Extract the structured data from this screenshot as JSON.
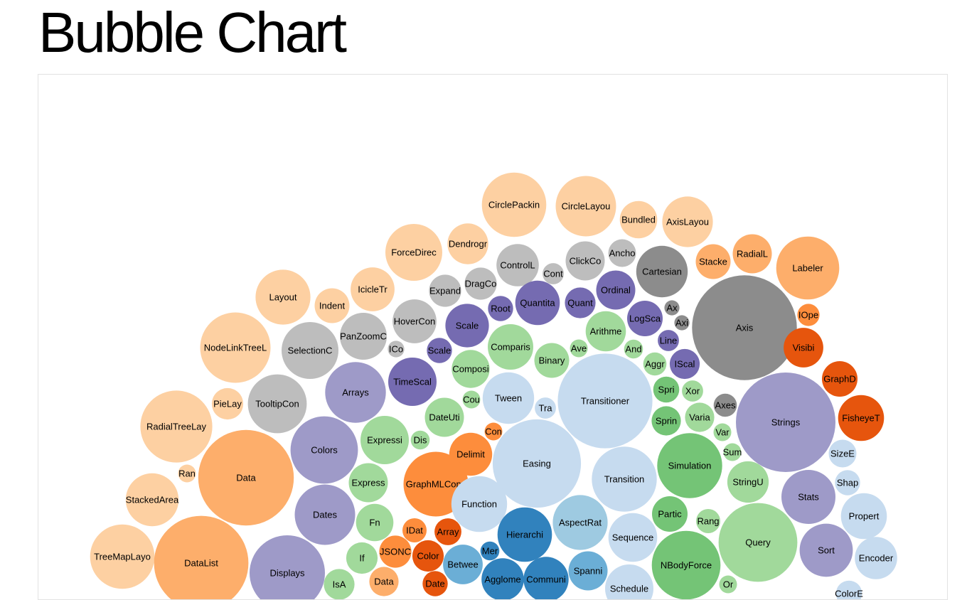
{
  "page": {
    "title": "Bubble Chart"
  },
  "colors": {
    "gray": [
      "#8c8c8c",
      "#adadad",
      "#bdbdbd"
    ],
    "orange": [
      "#e6550d",
      "#fd8d3c",
      "#fdae6b",
      "#fdd0a2"
    ],
    "purple": [
      "#756bb1",
      "#9e9ac8"
    ],
    "green": [
      "#74c476",
      "#a1d99b"
    ],
    "blue": [
      "#3182bd",
      "#6baed6",
      "#9ecae1",
      "#c6dbef"
    ]
  },
  "chart_data": {
    "type": "bubble",
    "title": "Bubble Chart",
    "bubbles": [
      {
        "label": "CirclePackin",
        "value": 9.2,
        "color": "#fdd0a2"
      },
      {
        "label": "CircleLayou",
        "value": 8.1,
        "color": "#fdd0a2"
      },
      {
        "label": "Bundled",
        "value": 3.1,
        "color": "#fdd0a2"
      },
      {
        "label": "AxisLayou",
        "value": 5.7,
        "color": "#fdd0a2"
      },
      {
        "label": "ForceDirec",
        "value": 7.2,
        "color": "#fdd0a2"
      },
      {
        "label": "Dendrogr",
        "value": 3.7,
        "color": "#fdd0a2"
      },
      {
        "label": "ControlL",
        "value": 4.0,
        "color": "#bdbdbd"
      },
      {
        "label": "ClickCo",
        "value": 3.4,
        "color": "#bdbdbd"
      },
      {
        "label": "Ancho",
        "value": 1.7,
        "color": "#bdbdbd"
      },
      {
        "label": "Cartesian",
        "value": 5.9,
        "color": "#8c8c8c"
      },
      {
        "label": "Stacke",
        "value": 2.7,
        "color": "#fdae6b"
      },
      {
        "label": "RadialL",
        "value": 3.4,
        "color": "#fdae6b"
      },
      {
        "label": "Labeler",
        "value": 8.8,
        "color": "#fdae6b"
      },
      {
        "label": "Layout",
        "value": 6.7,
        "color": "#fdd0a2"
      },
      {
        "label": "Indent",
        "value": 2.7,
        "color": "#fdd0a2"
      },
      {
        "label": "IcicleTr",
        "value": 4.3,
        "color": "#fdd0a2"
      },
      {
        "label": "Expand",
        "value": 2.3,
        "color": "#bdbdbd"
      },
      {
        "label": "DragCo",
        "value": 2.3,
        "color": "#bdbdbd"
      },
      {
        "label": "Cont",
        "value": 1.0,
        "color": "#bdbdbd"
      },
      {
        "label": "Ordinal",
        "value": 3.4,
        "color": "#756bb1"
      },
      {
        "label": "Quant",
        "value": 2.1,
        "color": "#756bb1"
      },
      {
        "label": "Quantita",
        "value": 4.4,
        "color": "#756bb1"
      },
      {
        "label": "Root",
        "value": 1.4,
        "color": "#756bb1"
      },
      {
        "label": "HoverCon",
        "value": 4.3,
        "color": "#bdbdbd"
      },
      {
        "label": "NodeLinkTreeL",
        "value": 11.0,
        "color": "#fdd0a2"
      },
      {
        "label": "SelectionC",
        "value": 7.2,
        "color": "#bdbdbd"
      },
      {
        "label": "PanZoomC",
        "value": 4.9,
        "color": "#bdbdbd"
      },
      {
        "label": "ICo",
        "value": 0.6,
        "color": "#bdbdbd"
      },
      {
        "label": "Scale",
        "value": 4.2,
        "color": "#756bb1"
      },
      {
        "label": "Scale",
        "value": 1.4,
        "color": "#756bb1"
      },
      {
        "label": "Comparis",
        "value": 4.6,
        "color": "#a1d99b"
      },
      {
        "label": "Binary",
        "value": 2.7,
        "color": "#a1d99b"
      },
      {
        "label": "Ave",
        "value": 0.7,
        "color": "#a1d99b"
      },
      {
        "label": "Arithme",
        "value": 3.6,
        "color": "#a1d99b"
      },
      {
        "label": "LogSca",
        "value": 2.8,
        "color": "#756bb1"
      },
      {
        "label": "Ax",
        "value": 0.5,
        "color": "#8c8c8c"
      },
      {
        "label": "Axi",
        "value": 0.5,
        "color": "#8c8c8c"
      },
      {
        "label": "Line",
        "value": 1.0,
        "color": "#756bb1"
      },
      {
        "label": "And",
        "value": 0.8,
        "color": "#a1d99b"
      },
      {
        "label": "Aggr",
        "value": 1.2,
        "color": "#a1d99b"
      },
      {
        "label": "IScal",
        "value": 2.0,
        "color": "#756bb1"
      },
      {
        "label": "Axis",
        "value": 24.4,
        "color": "#8c8c8c"
      },
      {
        "label": "IOpe",
        "value": 1.1,
        "color": "#fd8d3c"
      },
      {
        "label": "Visibi",
        "value": 3.5,
        "color": "#e6550d"
      },
      {
        "label": "GraphD",
        "value": 2.8,
        "color": "#e6550d"
      },
      {
        "label": "FisheyeT",
        "value": 4.7,
        "color": "#e6550d"
      },
      {
        "label": "Arrays",
        "value": 8.2,
        "color": "#9e9ac8"
      },
      {
        "label": "TimeScal",
        "value": 5.2,
        "color": "#756bb1"
      },
      {
        "label": "Composi",
        "value": 3.2,
        "color": "#a1d99b"
      },
      {
        "label": "Tween",
        "value": 5.9,
        "color": "#c6dbef"
      },
      {
        "label": "Transitioner",
        "value": 19.9,
        "color": "#c6dbef"
      },
      {
        "label": "Tra",
        "value": 1.0,
        "color": "#c6dbef"
      },
      {
        "label": "Cou",
        "value": 0.7,
        "color": "#a1d99b"
      },
      {
        "label": "Spri",
        "value": 1.5,
        "color": "#74c476"
      },
      {
        "label": "Xor",
        "value": 1.0,
        "color": "#a1d99b"
      },
      {
        "label": "Sprin",
        "value": 1.9,
        "color": "#74c476"
      },
      {
        "label": "Varia",
        "value": 1.9,
        "color": "#a1d99b"
      },
      {
        "label": "Axes",
        "value": 1.2,
        "color": "#8c8c8c"
      },
      {
        "label": "Var",
        "value": 0.7,
        "color": "#a1d99b"
      },
      {
        "label": "Strings",
        "value": 22.0,
        "color": "#9e9ac8"
      },
      {
        "label": "PieLay",
        "value": 2.2,
        "color": "#fdd0a2"
      },
      {
        "label": "TooltipCon",
        "value": 7.7,
        "color": "#bdbdbd"
      },
      {
        "label": "RadialTreeLay",
        "value": 11.5,
        "color": "#fdd0a2"
      },
      {
        "label": "DateUti",
        "value": 3.4,
        "color": "#a1d99b"
      },
      {
        "label": "Colors",
        "value": 10.1,
        "color": "#9e9ac8"
      },
      {
        "label": "Expressi",
        "value": 5.2,
        "color": "#a1d99b"
      },
      {
        "label": "Dis",
        "value": 0.8,
        "color": "#a1d99b"
      },
      {
        "label": "Con",
        "value": 0.7,
        "color": "#fd8d3c"
      },
      {
        "label": "Delimit",
        "value": 4.1,
        "color": "#fd8d3c"
      },
      {
        "label": "Easing",
        "value": 17.3,
        "color": "#c6dbef"
      },
      {
        "label": "Simulation",
        "value": 9.4,
        "color": "#74c476"
      },
      {
        "label": "Sum",
        "value": 0.7,
        "color": "#a1d99b"
      },
      {
        "label": "StringU",
        "value": 3.8,
        "color": "#a1d99b"
      },
      {
        "label": "SizeE",
        "value": 1.7,
        "color": "#c6dbef"
      },
      {
        "label": "Data",
        "value": 20.3,
        "color": "#fdae6b"
      },
      {
        "label": "Ran",
        "value": 0.7,
        "color": "#fdd0a2"
      },
      {
        "label": "Express",
        "value": 3.4,
        "color": "#a1d99b"
      },
      {
        "label": "GraphMLConv",
        "value": 9.3,
        "color": "#fd8d3c"
      },
      {
        "label": "Transition",
        "value": 9.4,
        "color": "#c6dbef"
      },
      {
        "label": "Stats",
        "value": 6.5,
        "color": "#9e9ac8"
      },
      {
        "label": "Shap",
        "value": 1.4,
        "color": "#c6dbef"
      },
      {
        "label": "StackedArea",
        "value": 6.2,
        "color": "#fdd0a2"
      },
      {
        "label": "Dates",
        "value": 8.1,
        "color": "#9e9ac8"
      },
      {
        "label": "Function",
        "value": 6.9,
        "color": "#c6dbef"
      },
      {
        "label": "AspectRat",
        "value": 6.7,
        "color": "#9ecae1"
      },
      {
        "label": "Partic",
        "value": 2.8,
        "color": "#74c476"
      },
      {
        "label": "Rang",
        "value": 1.3,
        "color": "#a1d99b"
      },
      {
        "label": "Propert",
        "value": 4.7,
        "color": "#c6dbef"
      },
      {
        "label": "Fn",
        "value": 3.1,
        "color": "#a1d99b"
      },
      {
        "label": "IDat",
        "value": 1.3,
        "color": "#fd8d3c"
      },
      {
        "label": "Array",
        "value": 1.6,
        "color": "#e6550d"
      },
      {
        "label": "Hierarchi",
        "value": 6.6,
        "color": "#3182bd"
      },
      {
        "label": "Sequence",
        "value": 5.3,
        "color": "#c6dbef"
      },
      {
        "label": "Query",
        "value": 13.8,
        "color": "#a1d99b"
      },
      {
        "label": "TreeMapLayo",
        "value": 9.2,
        "color": "#fdd0a2"
      },
      {
        "label": "DataList",
        "value": 19.8,
        "color": "#fdae6b"
      },
      {
        "label": "Displays",
        "value": 12.6,
        "color": "#9e9ac8"
      },
      {
        "label": "If",
        "value": 2.2,
        "color": "#a1d99b"
      },
      {
        "label": "JSONC",
        "value": 2.3,
        "color": "#fd8d3c"
      },
      {
        "label": "Color",
        "value": 2.2,
        "color": "#e6550d"
      },
      {
        "label": "Mer",
        "value": 0.8,
        "color": "#3182bd"
      },
      {
        "label": "Betwee",
        "value": 3.5,
        "color": "#6baed6"
      },
      {
        "label": "Spanni",
        "value": 3.4,
        "color": "#6baed6"
      },
      {
        "label": "NBodyForce",
        "value": 10.5,
        "color": "#74c476"
      },
      {
        "label": "Sort",
        "value": 6.3,
        "color": "#9e9ac8"
      },
      {
        "label": "Encoder",
        "value": 4.0,
        "color": "#c6dbef"
      },
      {
        "label": "IsA",
        "value": 2.1,
        "color": "#a1d99b"
      },
      {
        "label": "Data",
        "value": 1.9,
        "color": "#fdae6b"
      },
      {
        "label": "Date",
        "value": 1.4,
        "color": "#e6550d"
      },
      {
        "label": "Agglome",
        "value": 4.0,
        "color": "#3182bd"
      },
      {
        "label": "Communi",
        "value": 4.5,
        "color": "#3182bd"
      },
      {
        "label": "Schedule",
        "value": 5.2,
        "color": "#c6dbef"
      },
      {
        "label": "Or",
        "value": 0.7,
        "color": "#a1d99b"
      },
      {
        "label": "ColorE",
        "value": 1.5,
        "color": "#c6dbef"
      }
    ]
  }
}
